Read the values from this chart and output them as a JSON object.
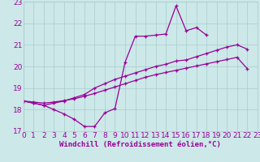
{
  "xlabel": "Windchill (Refroidissement éolien,°C)",
  "x_vals": [
    0,
    1,
    2,
    3,
    4,
    5,
    6,
    7,
    8,
    9,
    10,
    11,
    12,
    13,
    14,
    15,
    16,
    17,
    18,
    19,
    20,
    21,
    22,
    23
  ],
  "line1_y": [
    18.4,
    18.3,
    18.2,
    18.0,
    17.8,
    17.55,
    17.22,
    17.22,
    17.85,
    18.05,
    20.2,
    21.4,
    21.4,
    21.45,
    21.5,
    22.8,
    21.65,
    21.8,
    21.45,
    null,
    null,
    null,
    null,
    null
  ],
  "line2_y": [
    18.4,
    18.3,
    18.2,
    18.3,
    18.4,
    18.55,
    18.7,
    19.0,
    19.2,
    19.4,
    19.55,
    19.7,
    19.85,
    20.0,
    20.1,
    20.25,
    20.3,
    20.45,
    20.6,
    20.75,
    20.9,
    21.0,
    20.8,
    null
  ],
  "line3_y": [
    18.4,
    18.35,
    18.3,
    18.35,
    18.42,
    18.5,
    18.62,
    18.75,
    18.9,
    19.05,
    19.2,
    19.35,
    19.5,
    19.62,
    19.72,
    19.82,
    19.92,
    20.02,
    20.12,
    20.22,
    20.32,
    20.42,
    19.9,
    null
  ],
  "line_color": "#990099",
  "bg_color": "#cce8e8",
  "grid_color": "#aacccc",
  "xlim": [
    0,
    23
  ],
  "ylim": [
    17.0,
    23.0
  ],
  "yticks": [
    17,
    18,
    19,
    20,
    21,
    22,
    23
  ],
  "xticks": [
    0,
    1,
    2,
    3,
    4,
    5,
    6,
    7,
    8,
    9,
    10,
    11,
    12,
    13,
    14,
    15,
    16,
    17,
    18,
    19,
    20,
    21,
    22,
    23
  ],
  "tick_fontsize": 6.5,
  "xlabel_fontsize": 6.5
}
